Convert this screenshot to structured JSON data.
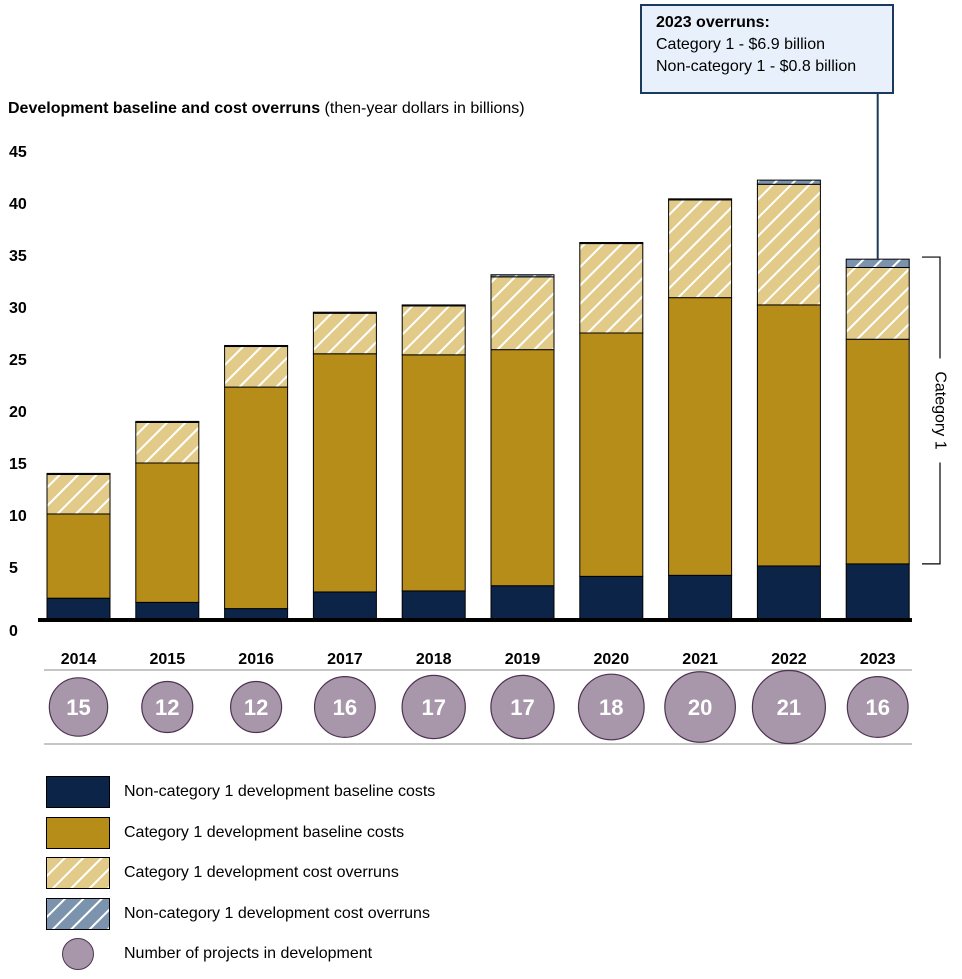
{
  "callout": {
    "title": "2023 overruns:",
    "line1": "Category 1 - $6.9 billion",
    "line2": "Non-category 1 - $0.8 billion"
  },
  "chart_title": {
    "bold": "Development baseline and cost overruns",
    "normal": " (then-year dollars in billions)"
  },
  "bracket_label": "Category 1",
  "chart_data": {
    "type": "bar",
    "stacked": true,
    "categories": [
      "2014",
      "2015",
      "2016",
      "2017",
      "2018",
      "2019",
      "2020",
      "2021",
      "2022",
      "2023"
    ],
    "ylim": [
      0,
      45
    ],
    "yticks": [
      0,
      5,
      10,
      15,
      20,
      25,
      30,
      35,
      40,
      45
    ],
    "grid": false,
    "series": [
      {
        "name": "Non-category 1 development baseline costs",
        "color": "#0b2447",
        "pattern": "solid",
        "values": [
          2.0,
          1.6,
          1.0,
          2.6,
          2.7,
          3.2,
          4.1,
          4.2,
          5.1,
          5.3
        ]
      },
      {
        "name": "Category 1 development baseline costs",
        "color": "#b78d1a",
        "pattern": "solid",
        "values": [
          8.1,
          13.4,
          21.3,
          22.9,
          22.7,
          22.7,
          23.4,
          26.7,
          25.1,
          21.6
        ]
      },
      {
        "name": "Category 1 development cost overruns",
        "color": "#e2cb88",
        "pattern": "hatch",
        "values": [
          3.8,
          3.9,
          3.9,
          3.9,
          4.7,
          7.0,
          8.6,
          9.4,
          11.6,
          6.9
        ]
      },
      {
        "name": "Non-category 1 development cost overruns",
        "color": "#7b93ad",
        "pattern": "hatch",
        "values": [
          0.1,
          0.1,
          0.1,
          0.1,
          0.1,
          0.2,
          0.1,
          0.1,
          0.4,
          0.8
        ]
      }
    ],
    "projects": {
      "name": "Number of projects in development",
      "values": [
        15,
        12,
        12,
        16,
        17,
        17,
        18,
        20,
        21,
        16
      ]
    },
    "bracket": {
      "label": "Category 1",
      "from": 5.3,
      "to": 34.8
    },
    "legend_position": "bottom-left"
  }
}
